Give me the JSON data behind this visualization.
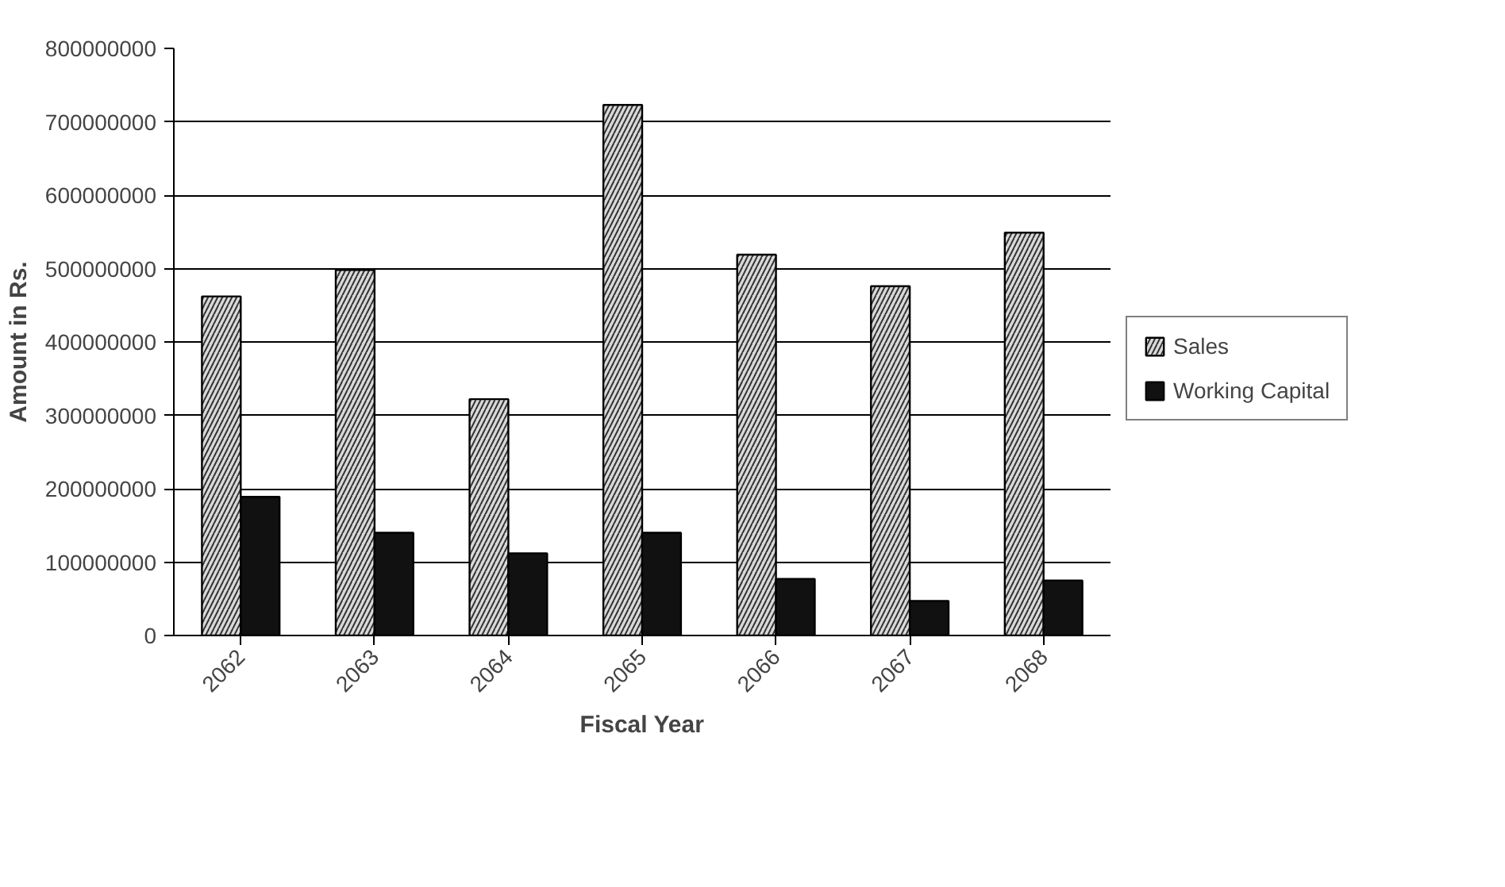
{
  "chart_data": {
    "type": "bar",
    "xlabel": "Fiscal Year",
    "ylabel": "Amount in Rs.",
    "categories": [
      "2062",
      "2063",
      "2064",
      "2065",
      "2066",
      "2067",
      "2068"
    ],
    "series": [
      {
        "name": "Sales",
        "color": "#d9d9d9",
        "values": [
          462000000,
          498000000,
          322000000,
          723000000,
          519000000,
          476000000,
          549000000
        ]
      },
      {
        "name": "Working Capital",
        "color": "#111111",
        "values": [
          189000000,
          140000000,
          112000000,
          140000000,
          77000000,
          47000000,
          75000000
        ]
      }
    ],
    "ylim": [
      0,
      800000000
    ],
    "yticks": [
      0,
      100000000,
      200000000,
      300000000,
      400000000,
      500000000,
      600000000,
      700000000,
      800000000
    ],
    "grid": "y",
    "legend": "right"
  }
}
